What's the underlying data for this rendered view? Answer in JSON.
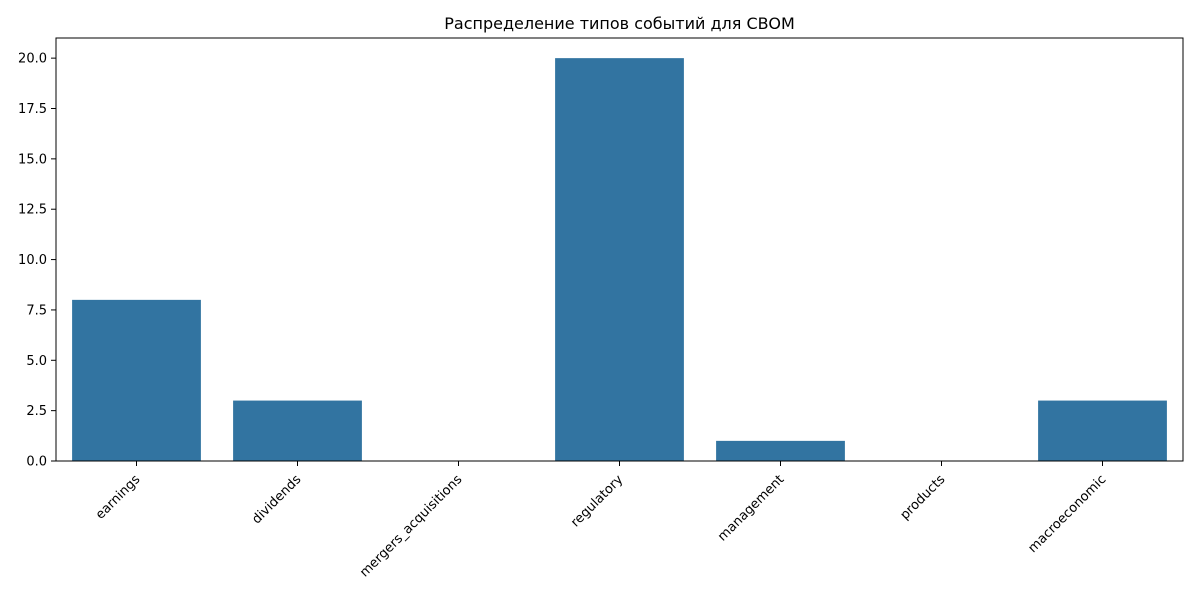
{
  "chart_data": {
    "type": "bar",
    "title": "Распределение типов событий для CBOM",
    "xlabel": "",
    "ylabel": "",
    "categories": [
      "earnings",
      "dividends",
      "mergers_acquisitions",
      "regulatory",
      "management",
      "products",
      "macroeconomic"
    ],
    "values": [
      8,
      3,
      0,
      20,
      1,
      0,
      3
    ],
    "ylim": [
      0,
      21
    ],
    "yticks": [
      0.0,
      2.5,
      5.0,
      7.5,
      10.0,
      12.5,
      15.0,
      17.5,
      20.0
    ],
    "ytick_labels": [
      "0.0",
      "2.5",
      "5.0",
      "7.5",
      "10.0",
      "12.5",
      "15.0",
      "17.5",
      "20.0"
    ],
    "grid": false,
    "bar_color": "#3274a1"
  }
}
